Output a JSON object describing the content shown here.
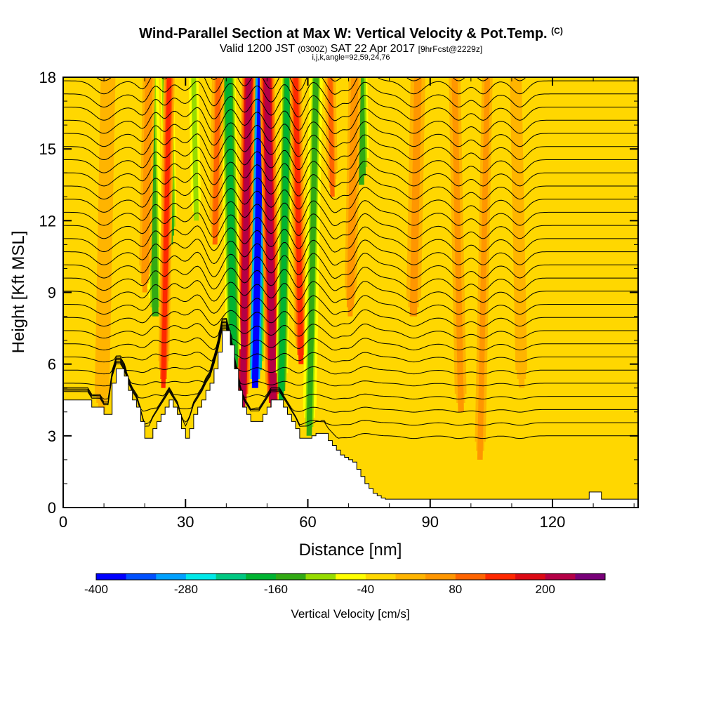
{
  "title": {
    "main": "Wind-Parallel Section at Max W: Vertical Velocity & Pot.Temp.",
    "copyright": "(C)",
    "valid_prefix": "Valid 1200 JST",
    "valid_zulu": "(0300Z)",
    "valid_date": "SAT 22 Apr 2017",
    "forecast": "[9hrFcst@2229z]",
    "indices": "i,j,k,angle=92,59,24,76"
  },
  "chart_data": {
    "type": "heatmap",
    "xlabel": "Distance [nm]",
    "ylabel": "Height [Kft MSL]",
    "xlim": [
      0,
      141
    ],
    "ylim": [
      0,
      18
    ],
    "x_ticks": [
      0,
      30,
      60,
      90,
      120
    ],
    "y_ticks": [
      0,
      3,
      6,
      9,
      12,
      15,
      18
    ],
    "colorbar": {
      "label": "Vertical Velocity [cm/s]",
      "ticks": [
        -400,
        -280,
        -160,
        -40,
        80,
        200
      ],
      "min": -400,
      "max": 280,
      "step": 40,
      "colors": [
        "#0000ff",
        "#0050ff",
        "#00a0ff",
        "#00e8e8",
        "#00c882",
        "#00b432",
        "#32aa14",
        "#96dc00",
        "#ffff00",
        "#ffd700",
        "#ffb400",
        "#ff9600",
        "#ff6400",
        "#ff2800",
        "#dc0a14",
        "#b40046",
        "#780078"
      ]
    },
    "background_level_cm_s": -20,
    "terrain": {
      "x_nm": [
        0,
        6,
        7,
        9,
        10,
        11,
        12,
        13,
        14,
        15,
        16,
        17,
        18,
        19,
        20,
        21,
        22,
        23,
        24,
        25,
        26,
        27,
        28,
        29,
        30,
        31,
        32,
        33,
        34,
        35,
        36,
        37,
        38,
        39,
        40,
        41,
        42,
        43,
        44,
        45,
        46,
        47,
        48,
        49,
        50,
        51,
        52,
        53,
        54,
        55,
        56,
        57,
        58,
        59,
        60,
        61,
        62,
        63,
        64,
        65,
        66,
        67,
        68,
        69,
        70,
        71,
        72,
        73,
        74,
        75,
        76,
        77,
        78,
        79,
        80,
        82,
        85,
        95,
        105,
        110,
        115,
        120,
        122,
        124,
        128,
        129,
        132,
        141
      ],
      "height_kft": [
        4.5,
        4.5,
        4.2,
        4.2,
        3.9,
        3.9,
        5.2,
        5.8,
        5.8,
        5.5,
        4.9,
        4.5,
        4.2,
        3.6,
        2.9,
        2.9,
        3.3,
        3.6,
        3.9,
        4.2,
        4.5,
        4.2,
        3.9,
        3.3,
        2.9,
        3.3,
        3.9,
        4.2,
        4.5,
        4.9,
        5.2,
        5.8,
        6.5,
        7.4,
        7.4,
        6.8,
        5.8,
        4.9,
        4.2,
        3.9,
        3.6,
        3.6,
        3.6,
        3.9,
        4.2,
        4.5,
        4.5,
        4.5,
        4.2,
        3.9,
        3.6,
        3.3,
        2.9,
        2.9,
        2.9,
        3.0,
        3.1,
        3.1,
        3.1,
        2.8,
        2.6,
        2.4,
        2.2,
        2.1,
        2.0,
        1.9,
        1.6,
        1.3,
        1.0,
        0.8,
        0.6,
        0.5,
        0.4,
        0.35,
        0.35,
        0.35,
        0.35,
        0.35,
        0.35,
        0.35,
        0.35,
        0.35,
        0.35,
        0.35,
        0.35,
        0.65,
        0.35,
        0.35
      ]
    },
    "velocity_features": [
      {
        "x_nm": 47.5,
        "w_cm_s": -400,
        "width_nm": 1.3,
        "bottom_kft": 5.0
      },
      {
        "x_nm": 51.0,
        "w_cm_s": 230,
        "width_nm": 1.2,
        "bottom_kft": 4.0
      },
      {
        "x_nm": 44.5,
        "w_cm_s": 230,
        "width_nm": 1.1,
        "bottom_kft": 4.0
      },
      {
        "x_nm": 41.5,
        "w_cm_s": -200,
        "width_nm": 1.2,
        "bottom_kft": 5.5
      },
      {
        "x_nm": 54.0,
        "w_cm_s": -200,
        "width_nm": 1.0,
        "bottom_kft": 4.5
      },
      {
        "x_nm": 58.0,
        "w_cm_s": 150,
        "width_nm": 1.0,
        "bottom_kft": 6.0
      },
      {
        "x_nm": 61.0,
        "w_cm_s": -140,
        "width_nm": 1.1,
        "bottom_kft": 3.0
      },
      {
        "x_nm": 22.5,
        "w_cm_s": -140,
        "width_nm": 1.3,
        "bottom_kft": 8.0
      },
      {
        "x_nm": 20.0,
        "w_cm_s": 60,
        "width_nm": 1.0,
        "bottom_kft": 9.0
      },
      {
        "x_nm": 26.5,
        "w_cm_s": -160,
        "width_nm": 1.1,
        "bottom_kft": 11.0
      },
      {
        "x_nm": 25.0,
        "w_cm_s": 120,
        "width_nm": 0.9,
        "bottom_kft": 5.0
      },
      {
        "x_nm": 33.0,
        "w_cm_s": -100,
        "width_nm": 1.0,
        "bottom_kft": 12.0
      },
      {
        "x_nm": 37.0,
        "w_cm_s": 80,
        "width_nm": 1.0,
        "bottom_kft": 11.0
      },
      {
        "x_nm": 73.5,
        "w_cm_s": -160,
        "width_nm": 1.4,
        "bottom_kft": 13.5
      },
      {
        "x_nm": 70.5,
        "w_cm_s": 60,
        "width_nm": 1.0,
        "bottom_kft": 8.0
      },
      {
        "x_nm": 66.5,
        "w_cm_s": 80,
        "width_nm": 0.9,
        "bottom_kft": 13.0
      },
      {
        "x_nm": 86.0,
        "w_cm_s": 40,
        "width_nm": 1.5,
        "bottom_kft": 8.0
      },
      {
        "x_nm": 97.0,
        "w_cm_s": 40,
        "width_nm": 1.2,
        "bottom_kft": 4.0
      },
      {
        "x_nm": 103.0,
        "w_cm_s": 40,
        "width_nm": 1.1,
        "bottom_kft": 2.0
      },
      {
        "x_nm": 112.0,
        "w_cm_s": 20,
        "width_nm": 1.2,
        "bottom_kft": 5.0
      },
      {
        "x_nm": 10.0,
        "w_cm_s": 20,
        "width_nm": 1.5,
        "bottom_kft": 4.0
      }
    ]
  }
}
